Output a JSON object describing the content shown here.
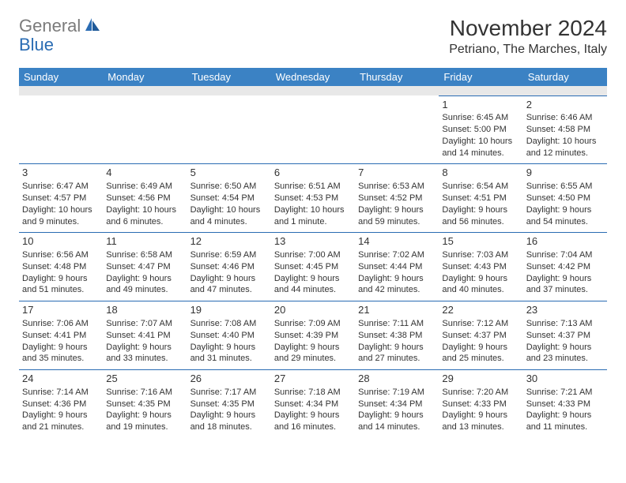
{
  "logo": {
    "part1": "General",
    "part2": "Blue"
  },
  "title": "November 2024",
  "location": "Petriano, The Marches, Italy",
  "colors": {
    "header_bg": "#3b82c4",
    "header_text": "#ffffff",
    "cell_border": "#2a6cb3",
    "spacer_bg": "#e8e8e8",
    "text": "#333333",
    "logo_gray": "#7b7b7b",
    "logo_blue": "#2a6cb3"
  },
  "day_names": [
    "Sunday",
    "Monday",
    "Tuesday",
    "Wednesday",
    "Thursday",
    "Friday",
    "Saturday"
  ],
  "weeks": [
    [
      null,
      null,
      null,
      null,
      null,
      {
        "n": "1",
        "sr": "Sunrise: 6:45 AM",
        "ss": "Sunset: 5:00 PM",
        "d1": "Daylight: 10 hours",
        "d2": "and 14 minutes."
      },
      {
        "n": "2",
        "sr": "Sunrise: 6:46 AM",
        "ss": "Sunset: 4:58 PM",
        "d1": "Daylight: 10 hours",
        "d2": "and 12 minutes."
      }
    ],
    [
      {
        "n": "3",
        "sr": "Sunrise: 6:47 AM",
        "ss": "Sunset: 4:57 PM",
        "d1": "Daylight: 10 hours",
        "d2": "and 9 minutes."
      },
      {
        "n": "4",
        "sr": "Sunrise: 6:49 AM",
        "ss": "Sunset: 4:56 PM",
        "d1": "Daylight: 10 hours",
        "d2": "and 6 minutes."
      },
      {
        "n": "5",
        "sr": "Sunrise: 6:50 AM",
        "ss": "Sunset: 4:54 PM",
        "d1": "Daylight: 10 hours",
        "d2": "and 4 minutes."
      },
      {
        "n": "6",
        "sr": "Sunrise: 6:51 AM",
        "ss": "Sunset: 4:53 PM",
        "d1": "Daylight: 10 hours",
        "d2": "and 1 minute."
      },
      {
        "n": "7",
        "sr": "Sunrise: 6:53 AM",
        "ss": "Sunset: 4:52 PM",
        "d1": "Daylight: 9 hours",
        "d2": "and 59 minutes."
      },
      {
        "n": "8",
        "sr": "Sunrise: 6:54 AM",
        "ss": "Sunset: 4:51 PM",
        "d1": "Daylight: 9 hours",
        "d2": "and 56 minutes."
      },
      {
        "n": "9",
        "sr": "Sunrise: 6:55 AM",
        "ss": "Sunset: 4:50 PM",
        "d1": "Daylight: 9 hours",
        "d2": "and 54 minutes."
      }
    ],
    [
      {
        "n": "10",
        "sr": "Sunrise: 6:56 AM",
        "ss": "Sunset: 4:48 PM",
        "d1": "Daylight: 9 hours",
        "d2": "and 51 minutes."
      },
      {
        "n": "11",
        "sr": "Sunrise: 6:58 AM",
        "ss": "Sunset: 4:47 PM",
        "d1": "Daylight: 9 hours",
        "d2": "and 49 minutes."
      },
      {
        "n": "12",
        "sr": "Sunrise: 6:59 AM",
        "ss": "Sunset: 4:46 PM",
        "d1": "Daylight: 9 hours",
        "d2": "and 47 minutes."
      },
      {
        "n": "13",
        "sr": "Sunrise: 7:00 AM",
        "ss": "Sunset: 4:45 PM",
        "d1": "Daylight: 9 hours",
        "d2": "and 44 minutes."
      },
      {
        "n": "14",
        "sr": "Sunrise: 7:02 AM",
        "ss": "Sunset: 4:44 PM",
        "d1": "Daylight: 9 hours",
        "d2": "and 42 minutes."
      },
      {
        "n": "15",
        "sr": "Sunrise: 7:03 AM",
        "ss": "Sunset: 4:43 PM",
        "d1": "Daylight: 9 hours",
        "d2": "and 40 minutes."
      },
      {
        "n": "16",
        "sr": "Sunrise: 7:04 AM",
        "ss": "Sunset: 4:42 PM",
        "d1": "Daylight: 9 hours",
        "d2": "and 37 minutes."
      }
    ],
    [
      {
        "n": "17",
        "sr": "Sunrise: 7:06 AM",
        "ss": "Sunset: 4:41 PM",
        "d1": "Daylight: 9 hours",
        "d2": "and 35 minutes."
      },
      {
        "n": "18",
        "sr": "Sunrise: 7:07 AM",
        "ss": "Sunset: 4:41 PM",
        "d1": "Daylight: 9 hours",
        "d2": "and 33 minutes."
      },
      {
        "n": "19",
        "sr": "Sunrise: 7:08 AM",
        "ss": "Sunset: 4:40 PM",
        "d1": "Daylight: 9 hours",
        "d2": "and 31 minutes."
      },
      {
        "n": "20",
        "sr": "Sunrise: 7:09 AM",
        "ss": "Sunset: 4:39 PM",
        "d1": "Daylight: 9 hours",
        "d2": "and 29 minutes."
      },
      {
        "n": "21",
        "sr": "Sunrise: 7:11 AM",
        "ss": "Sunset: 4:38 PM",
        "d1": "Daylight: 9 hours",
        "d2": "and 27 minutes."
      },
      {
        "n": "22",
        "sr": "Sunrise: 7:12 AM",
        "ss": "Sunset: 4:37 PM",
        "d1": "Daylight: 9 hours",
        "d2": "and 25 minutes."
      },
      {
        "n": "23",
        "sr": "Sunrise: 7:13 AM",
        "ss": "Sunset: 4:37 PM",
        "d1": "Daylight: 9 hours",
        "d2": "and 23 minutes."
      }
    ],
    [
      {
        "n": "24",
        "sr": "Sunrise: 7:14 AM",
        "ss": "Sunset: 4:36 PM",
        "d1": "Daylight: 9 hours",
        "d2": "and 21 minutes."
      },
      {
        "n": "25",
        "sr": "Sunrise: 7:16 AM",
        "ss": "Sunset: 4:35 PM",
        "d1": "Daylight: 9 hours",
        "d2": "and 19 minutes."
      },
      {
        "n": "26",
        "sr": "Sunrise: 7:17 AM",
        "ss": "Sunset: 4:35 PM",
        "d1": "Daylight: 9 hours",
        "d2": "and 18 minutes."
      },
      {
        "n": "27",
        "sr": "Sunrise: 7:18 AM",
        "ss": "Sunset: 4:34 PM",
        "d1": "Daylight: 9 hours",
        "d2": "and 16 minutes."
      },
      {
        "n": "28",
        "sr": "Sunrise: 7:19 AM",
        "ss": "Sunset: 4:34 PM",
        "d1": "Daylight: 9 hours",
        "d2": "and 14 minutes."
      },
      {
        "n": "29",
        "sr": "Sunrise: 7:20 AM",
        "ss": "Sunset: 4:33 PM",
        "d1": "Daylight: 9 hours",
        "d2": "and 13 minutes."
      },
      {
        "n": "30",
        "sr": "Sunrise: 7:21 AM",
        "ss": "Sunset: 4:33 PM",
        "d1": "Daylight: 9 hours",
        "d2": "and 11 minutes."
      }
    ]
  ]
}
